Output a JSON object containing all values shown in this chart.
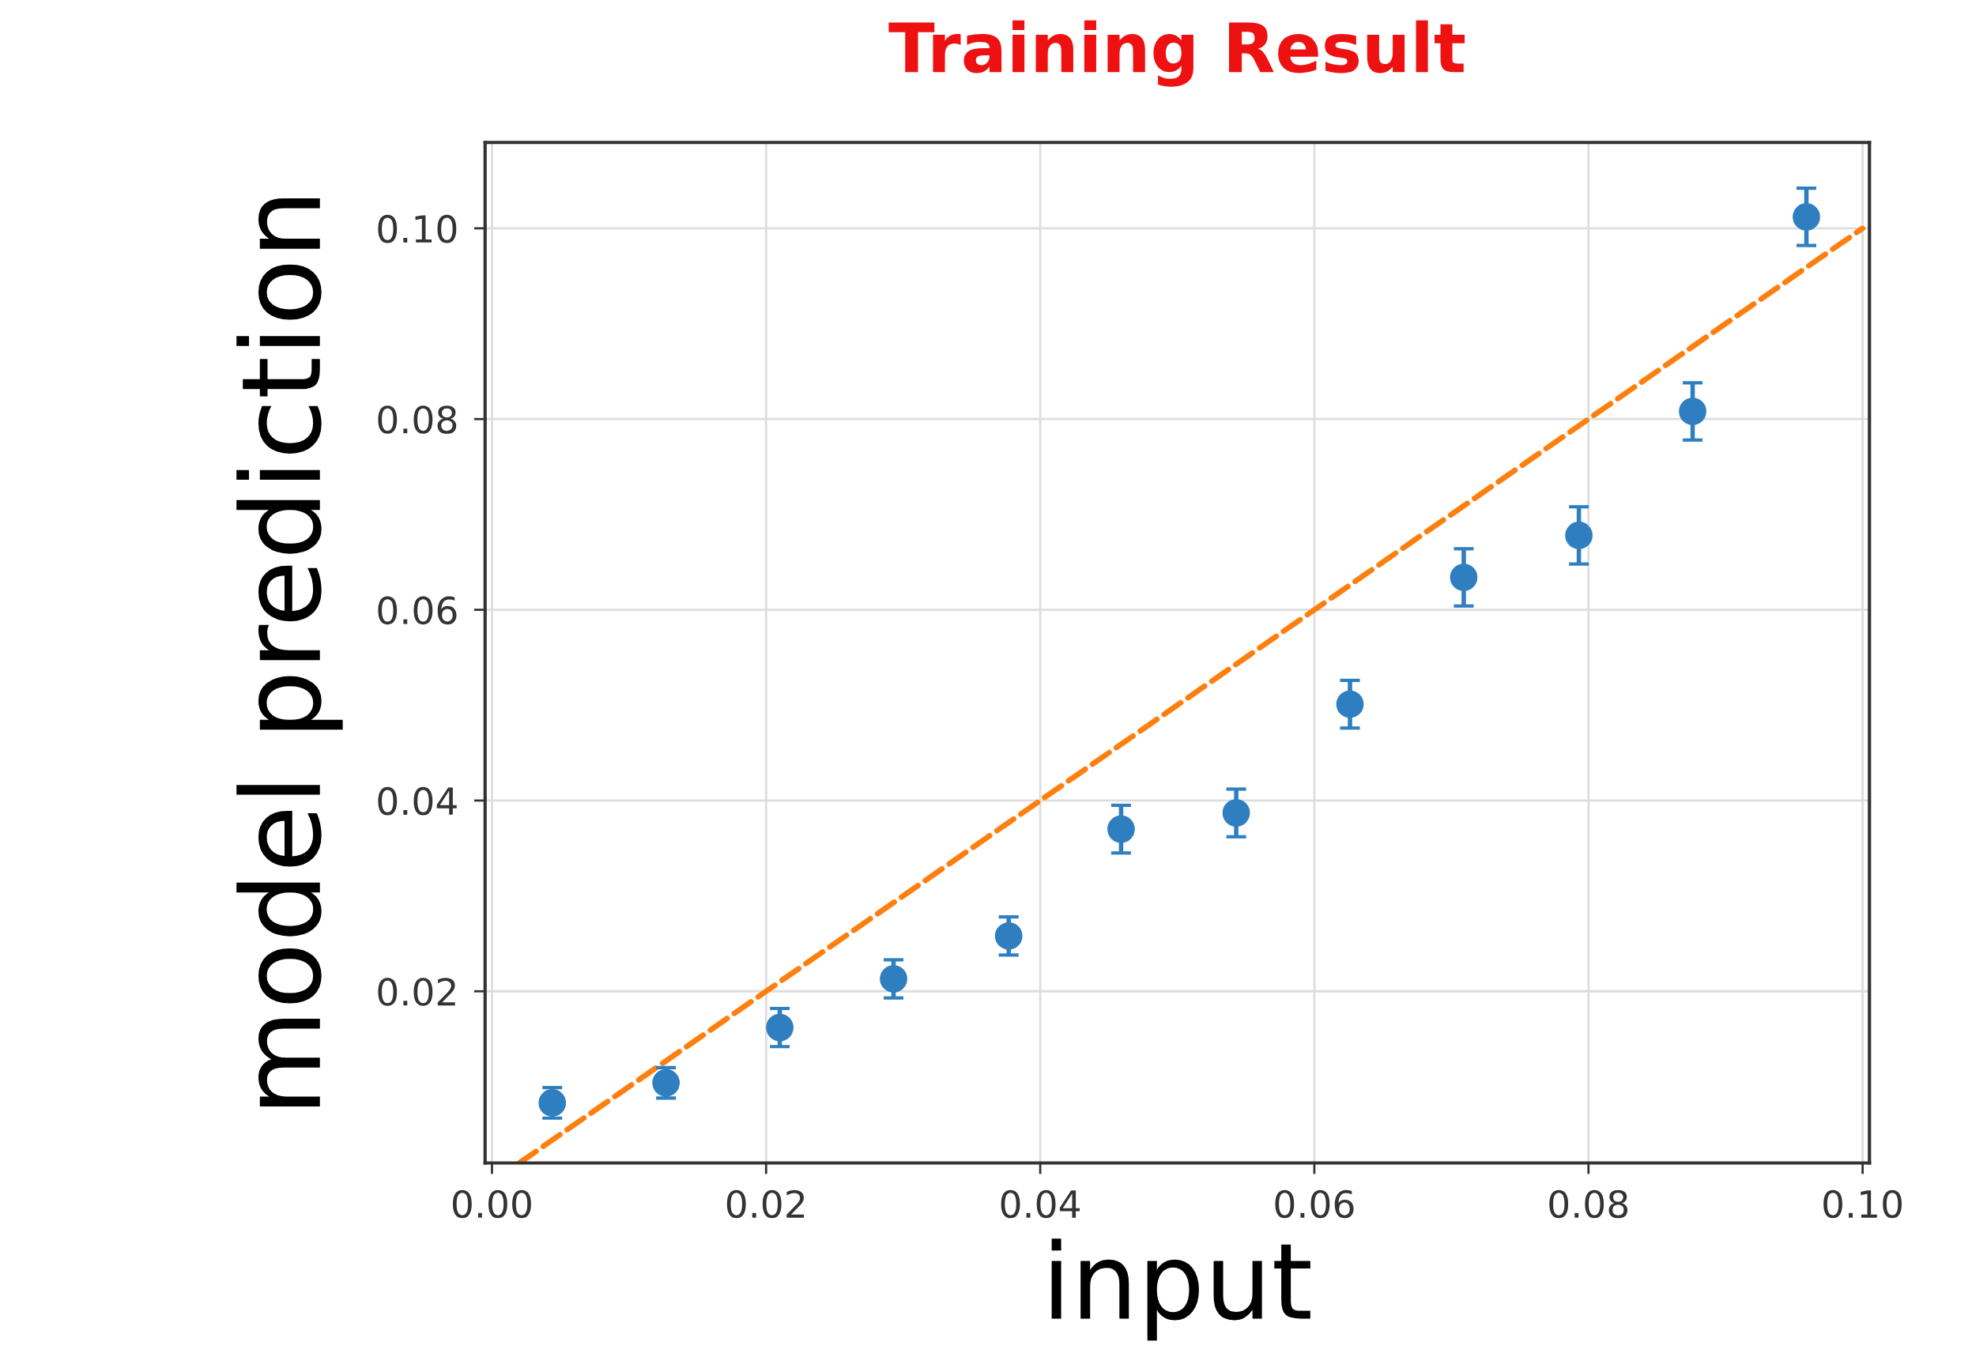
{
  "chart_data": {
    "type": "scatter",
    "title": "Training Result",
    "xlabel": "input",
    "ylabel": "model prediction",
    "xlim": [
      -0.0005,
      0.1005
    ],
    "ylim": [
      0.002,
      0.109
    ],
    "xticks": [
      {
        "value": 0,
        "label": "0.00"
      },
      0.02,
      0.04,
      0.06,
      0.08,
      {
        "value": 0.1,
        "label": "0.10"
      }
    ],
    "yticks": [
      0.02,
      0.04,
      0.06,
      0.08,
      {
        "value": 0.1,
        "label": "0.10"
      }
    ],
    "grid": true,
    "marker": "circle",
    "series": [
      {
        "color": "#2f7fc0",
        "x": [
          0.0044,
          0.0127,
          0.021,
          0.0293,
          0.0377,
          0.0459,
          0.0543,
          0.0626,
          0.0709,
          0.0793,
          0.0876,
          0.0959
        ],
        "values": [
          0.0083,
          0.0104,
          0.0162,
          0.0213,
          0.0258,
          0.037,
          0.0387,
          0.0501,
          0.0634,
          0.0678,
          0.0808,
          0.1012
        ],
        "errors": [
          0.0016,
          0.0016,
          0.002,
          0.002,
          0.002,
          0.0025,
          0.0025,
          0.0025,
          0.003,
          0.003,
          0.003,
          0.003
        ]
      },
      {
        "type": "line",
        "color": "#ff7f0e",
        "line_style": "dashed",
        "marker": "none",
        "x": [
          0.002,
          0.1
        ],
        "values": [
          0.002,
          0.1
        ]
      }
    ]
  }
}
